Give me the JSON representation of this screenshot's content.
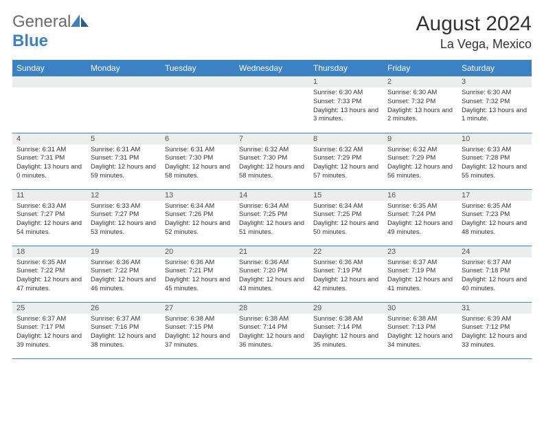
{
  "brand": {
    "name_a": "General",
    "name_b": "Blue"
  },
  "title": "August 2024",
  "location": "La Vega, Mexico",
  "colors": {
    "header_bg": "#3b82c4",
    "daynum_bg": "#eceded",
    "row_border": "#3b82c4"
  },
  "weekdays": [
    "Sunday",
    "Monday",
    "Tuesday",
    "Wednesday",
    "Thursday",
    "Friday",
    "Saturday"
  ],
  "weeks": [
    [
      null,
      null,
      null,
      null,
      {
        "n": "1",
        "sr": "6:30 AM",
        "ss": "7:33 PM",
        "dl": "13 hours and 3 minutes."
      },
      {
        "n": "2",
        "sr": "6:30 AM",
        "ss": "7:32 PM",
        "dl": "13 hours and 2 minutes."
      },
      {
        "n": "3",
        "sr": "6:30 AM",
        "ss": "7:32 PM",
        "dl": "13 hours and 1 minute."
      }
    ],
    [
      {
        "n": "4",
        "sr": "6:31 AM",
        "ss": "7:31 PM",
        "dl": "13 hours and 0 minutes."
      },
      {
        "n": "5",
        "sr": "6:31 AM",
        "ss": "7:31 PM",
        "dl": "12 hours and 59 minutes."
      },
      {
        "n": "6",
        "sr": "6:31 AM",
        "ss": "7:30 PM",
        "dl": "12 hours and 58 minutes."
      },
      {
        "n": "7",
        "sr": "6:32 AM",
        "ss": "7:30 PM",
        "dl": "12 hours and 58 minutes."
      },
      {
        "n": "8",
        "sr": "6:32 AM",
        "ss": "7:29 PM",
        "dl": "12 hours and 57 minutes."
      },
      {
        "n": "9",
        "sr": "6:32 AM",
        "ss": "7:29 PM",
        "dl": "12 hours and 56 minutes."
      },
      {
        "n": "10",
        "sr": "6:33 AM",
        "ss": "7:28 PM",
        "dl": "12 hours and 55 minutes."
      }
    ],
    [
      {
        "n": "11",
        "sr": "6:33 AM",
        "ss": "7:27 PM",
        "dl": "12 hours and 54 minutes."
      },
      {
        "n": "12",
        "sr": "6:33 AM",
        "ss": "7:27 PM",
        "dl": "12 hours and 53 minutes."
      },
      {
        "n": "13",
        "sr": "6:34 AM",
        "ss": "7:26 PM",
        "dl": "12 hours and 52 minutes."
      },
      {
        "n": "14",
        "sr": "6:34 AM",
        "ss": "7:25 PM",
        "dl": "12 hours and 51 minutes."
      },
      {
        "n": "15",
        "sr": "6:34 AM",
        "ss": "7:25 PM",
        "dl": "12 hours and 50 minutes."
      },
      {
        "n": "16",
        "sr": "6:35 AM",
        "ss": "7:24 PM",
        "dl": "12 hours and 49 minutes."
      },
      {
        "n": "17",
        "sr": "6:35 AM",
        "ss": "7:23 PM",
        "dl": "12 hours and 48 minutes."
      }
    ],
    [
      {
        "n": "18",
        "sr": "6:35 AM",
        "ss": "7:22 PM",
        "dl": "12 hours and 47 minutes."
      },
      {
        "n": "19",
        "sr": "6:36 AM",
        "ss": "7:22 PM",
        "dl": "12 hours and 46 minutes."
      },
      {
        "n": "20",
        "sr": "6:36 AM",
        "ss": "7:21 PM",
        "dl": "12 hours and 45 minutes."
      },
      {
        "n": "21",
        "sr": "6:36 AM",
        "ss": "7:20 PM",
        "dl": "12 hours and 43 minutes."
      },
      {
        "n": "22",
        "sr": "6:36 AM",
        "ss": "7:19 PM",
        "dl": "12 hours and 42 minutes."
      },
      {
        "n": "23",
        "sr": "6:37 AM",
        "ss": "7:19 PM",
        "dl": "12 hours and 41 minutes."
      },
      {
        "n": "24",
        "sr": "6:37 AM",
        "ss": "7:18 PM",
        "dl": "12 hours and 40 minutes."
      }
    ],
    [
      {
        "n": "25",
        "sr": "6:37 AM",
        "ss": "7:17 PM",
        "dl": "12 hours and 39 minutes."
      },
      {
        "n": "26",
        "sr": "6:37 AM",
        "ss": "7:16 PM",
        "dl": "12 hours and 38 minutes."
      },
      {
        "n": "27",
        "sr": "6:38 AM",
        "ss": "7:15 PM",
        "dl": "12 hours and 37 minutes."
      },
      {
        "n": "28",
        "sr": "6:38 AM",
        "ss": "7:14 PM",
        "dl": "12 hours and 36 minutes."
      },
      {
        "n": "29",
        "sr": "6:38 AM",
        "ss": "7:14 PM",
        "dl": "12 hours and 35 minutes."
      },
      {
        "n": "30",
        "sr": "6:38 AM",
        "ss": "7:13 PM",
        "dl": "12 hours and 34 minutes."
      },
      {
        "n": "31",
        "sr": "6:39 AM",
        "ss": "7:12 PM",
        "dl": "12 hours and 33 minutes."
      }
    ]
  ],
  "labels": {
    "sunrise": "Sunrise:",
    "sunset": "Sunset:",
    "daylight": "Daylight:"
  }
}
